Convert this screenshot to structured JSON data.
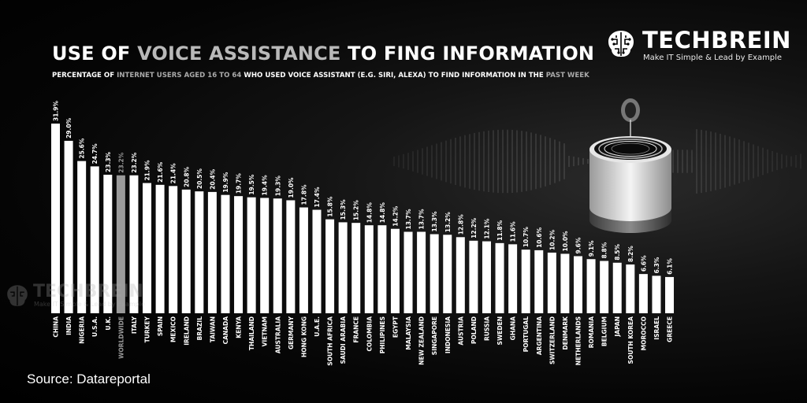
{
  "header": {
    "title_part1": "USE OF ",
    "title_part2": "VOICE ASSISTANCE",
    "title_part3": " TO FING INFORMATION",
    "subtitle_part1": "PERCENTAGE OF ",
    "subtitle_part2": "INTERNET USERS AGED 16 TO 64",
    "subtitle_part3": " WHO USED VOICE ASSISTANT (E.G. SIRI, ALEXA) TO FIND INFORMATION IN THE ",
    "subtitle_part4": "PAST WEEK"
  },
  "brand": {
    "name": "TECHBREIN",
    "tagline": "Make IT Simple & Lead by Example"
  },
  "source": "Source: Datareportal",
  "colors": {
    "bar": "#ffffff",
    "bar_highlight": "#9a9a9a",
    "label_highlight": "#9a9a9a",
    "background": "#000000"
  },
  "chart_data": {
    "type": "bar",
    "title": "USE OF VOICE ASSISTANCE TO FING INFORMATION",
    "ylabel": "",
    "xlabel": "",
    "unit": "%",
    "ylim": [
      0,
      31.9
    ],
    "grid": false,
    "legend": "none",
    "highlight_category": "WORLDWIDE",
    "categories": [
      "CHINA",
      "INDIA",
      "NIGERIA",
      "U.S.A.",
      "U.K.",
      "WORLDWIDE",
      "ITALY",
      "TURKEY",
      "SPAIN",
      "MEXICO",
      "IRELAND",
      "BRAZIL",
      "TAIWAN",
      "CANADA",
      "KENYA",
      "THAILAND",
      "VIETNAM",
      "AUSTRALIA",
      "GERMANY",
      "HONG KONG",
      "U.A.E.",
      "SOUTH AFRICA",
      "SAUDI ARABIA",
      "FRANCE",
      "COLOMBIA",
      "PHILIPINES",
      "EGYPT",
      "MALAYSIA",
      "NEW ZEALAND",
      "SINGAPORE",
      "INDONESIA",
      "AUSTRIA",
      "POLAND",
      "RUSSIA",
      "SWEDEN",
      "GHANA",
      "PORTUGAL",
      "ARGENTINA",
      "SWITZERLAND",
      "DENMARK",
      "NETHERLANDS",
      "ROMANIA",
      "BELGIUM",
      "JAPAN",
      "SOUTH KOREA",
      "MOROCCO",
      "ISRAEL",
      "GREECE"
    ],
    "values": [
      31.9,
      29.0,
      25.6,
      24.7,
      23.3,
      23.2,
      23.2,
      21.9,
      21.6,
      21.4,
      20.8,
      20.5,
      20.4,
      19.9,
      19.7,
      19.5,
      19.4,
      19.3,
      19.0,
      17.8,
      17.4,
      15.8,
      15.3,
      15.2,
      14.8,
      14.8,
      14.2,
      13.7,
      13.7,
      13.3,
      13.2,
      12.8,
      12.2,
      12.1,
      11.8,
      11.6,
      10.7,
      10.6,
      10.2,
      10.0,
      9.6,
      9.1,
      8.8,
      8.5,
      8.2,
      6.6,
      6.3,
      6.1
    ],
    "value_labels": [
      "31.9%",
      "29.0%",
      "25.6%",
      "24.7%",
      "23.3%",
      "23.2%",
      "23.2%",
      "21.9%",
      "21.6%",
      "21.4%",
      "20.8%",
      "20.5%",
      "20.4%",
      "19.9%",
      "19.7%",
      "19.5%",
      "19.4%",
      "19.3%",
      "19.0%",
      "17.8%",
      "17.4%",
      "15.8%",
      "15.3%",
      "15.2%",
      "14.8%",
      "14.8%",
      "14.2%",
      "13.7%",
      "13.7%",
      "13.3%",
      "13.2%",
      "12.8%",
      "12.2%",
      "12.1%",
      "11.8%",
      "11.6%",
      "10.7%",
      "10.6%",
      "10.2%",
      "10.0%",
      "9.6%",
      "9.1%",
      "8.8%",
      "8.5%",
      "8.2%",
      "6.6%",
      "6.3%",
      "6.1%"
    ]
  }
}
